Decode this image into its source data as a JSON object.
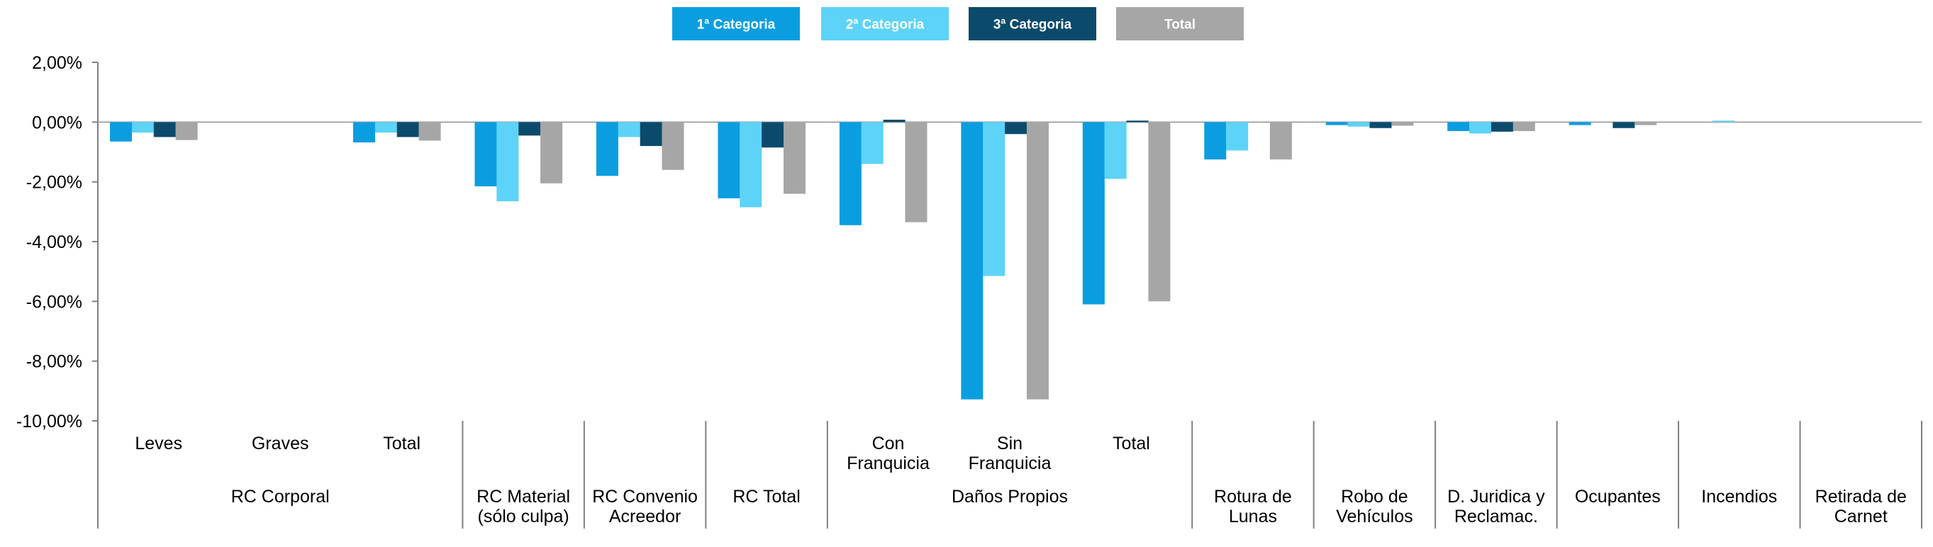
{
  "chart_data": {
    "type": "bar",
    "title": "",
    "xlabel": "",
    "ylabel": "",
    "ylim": [
      -10,
      2
    ],
    "y_ticks": [
      "2,00%",
      "0,00%",
      "-2,00%",
      "-4,00%",
      "-6,00%",
      "-8,00%",
      "-10,00%"
    ],
    "y_tick_values": [
      2,
      0,
      -2,
      -4,
      -6,
      -8,
      -10
    ],
    "legend_position": "top-center",
    "grid": false,
    "series": [
      {
        "name": "1ª Categoria",
        "color": "#0a9ee0"
      },
      {
        "name": "2ª Categoria",
        "color": "#5dd3f7"
      },
      {
        "name": "3ª Categoria",
        "color": "#0b4a6b"
      },
      {
        "name": "Total",
        "color": "#a6a6a6"
      }
    ],
    "categories": [
      {
        "label": "Leves",
        "group": "RC Corporal",
        "values": [
          -0.65,
          -0.35,
          -0.5,
          -0.6
        ]
      },
      {
        "label": "Graves",
        "group": "RC Corporal",
        "values": [
          0,
          0,
          0,
          0
        ]
      },
      {
        "label": "Total",
        "group": "RC Corporal",
        "values": [
          -0.68,
          -0.35,
          -0.5,
          -0.62
        ]
      },
      {
        "label": "RC Material (sólo culpa)",
        "group": "",
        "values": [
          -2.15,
          -2.65,
          -0.45,
          -2.05
        ]
      },
      {
        "label": "RC Convenio Acreedor",
        "group": "",
        "values": [
          -1.8,
          -0.5,
          -0.8,
          -1.6
        ]
      },
      {
        "label": "RC Total",
        "group": "",
        "values": [
          -2.55,
          -2.85,
          -0.85,
          -2.4
        ]
      },
      {
        "label": "Con Franquicia",
        "group": "Daños Propios",
        "values": [
          -3.45,
          -1.4,
          0.08,
          -3.35
        ]
      },
      {
        "label": "Sin Franquicia",
        "group": "Daños Propios",
        "values": [
          -9.28,
          -5.15,
          -0.4,
          -9.28
        ]
      },
      {
        "label": "Total",
        "group": "Daños Propios",
        "values": [
          -6.1,
          -1.9,
          0.05,
          -6.0
        ]
      },
      {
        "label": "Rotura de Lunas",
        "group": "",
        "values": [
          -1.25,
          -0.95,
          0,
          -1.25
        ]
      },
      {
        "label": "Robo de Vehículos",
        "group": "",
        "values": [
          -0.1,
          -0.15,
          -0.2,
          -0.12
        ]
      },
      {
        "label": "D. Juridica y Reclamac.",
        "group": "",
        "values": [
          -0.3,
          -0.38,
          -0.32,
          -0.3
        ]
      },
      {
        "label": "Ocupantes",
        "group": "",
        "values": [
          -0.1,
          0,
          -0.2,
          -0.1
        ]
      },
      {
        "label": "Incendios",
        "group": "",
        "values": [
          0,
          0.05,
          0,
          0
        ]
      },
      {
        "label": "Retirada de Carnet",
        "group": "",
        "values": [
          0,
          0,
          0,
          0
        ]
      }
    ],
    "group_labels": [
      "RC Corporal",
      "Daños Propios"
    ]
  }
}
